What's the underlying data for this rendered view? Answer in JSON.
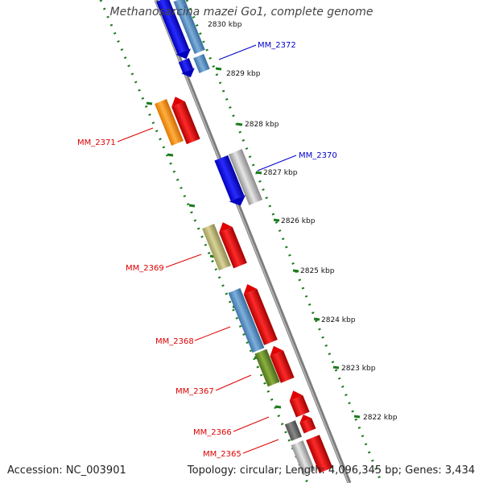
{
  "title": "Methanosarcina mazei Go1, complete genome",
  "footer": {
    "accession": "Accession: NC_003901",
    "summary": "Topology: circular; Length: 4,096,345 bp; Genes: 3,434"
  },
  "colors": {
    "backbone": "#808080",
    "track_dots": "#1a7a1a",
    "label_red": "#dd0000",
    "label_blue": "#0000cc"
  },
  "ticks": [
    {
      "label": "2830 kbp"
    },
    {
      "label": "2829 kbp"
    },
    {
      "label": "2828 kbp"
    },
    {
      "label": "2827 kbp"
    },
    {
      "label": "2826 kbp"
    },
    {
      "label": "2825 kbp"
    },
    {
      "label": "2824 kbp"
    },
    {
      "label": "2823 kbp"
    },
    {
      "label": "2822 kbp"
    }
  ],
  "gene_labels": [
    {
      "name": "MM_2372",
      "color": "blue"
    },
    {
      "name": "MM_2371",
      "color": "red"
    },
    {
      "name": "MM_2370",
      "color": "blue"
    },
    {
      "name": "MM_2369",
      "color": "red"
    },
    {
      "name": "MM_2368",
      "color": "red"
    },
    {
      "name": "MM_2367",
      "color": "red"
    },
    {
      "name": "MM_2366",
      "color": "red"
    },
    {
      "name": "MM_2365",
      "color": "red"
    }
  ]
}
